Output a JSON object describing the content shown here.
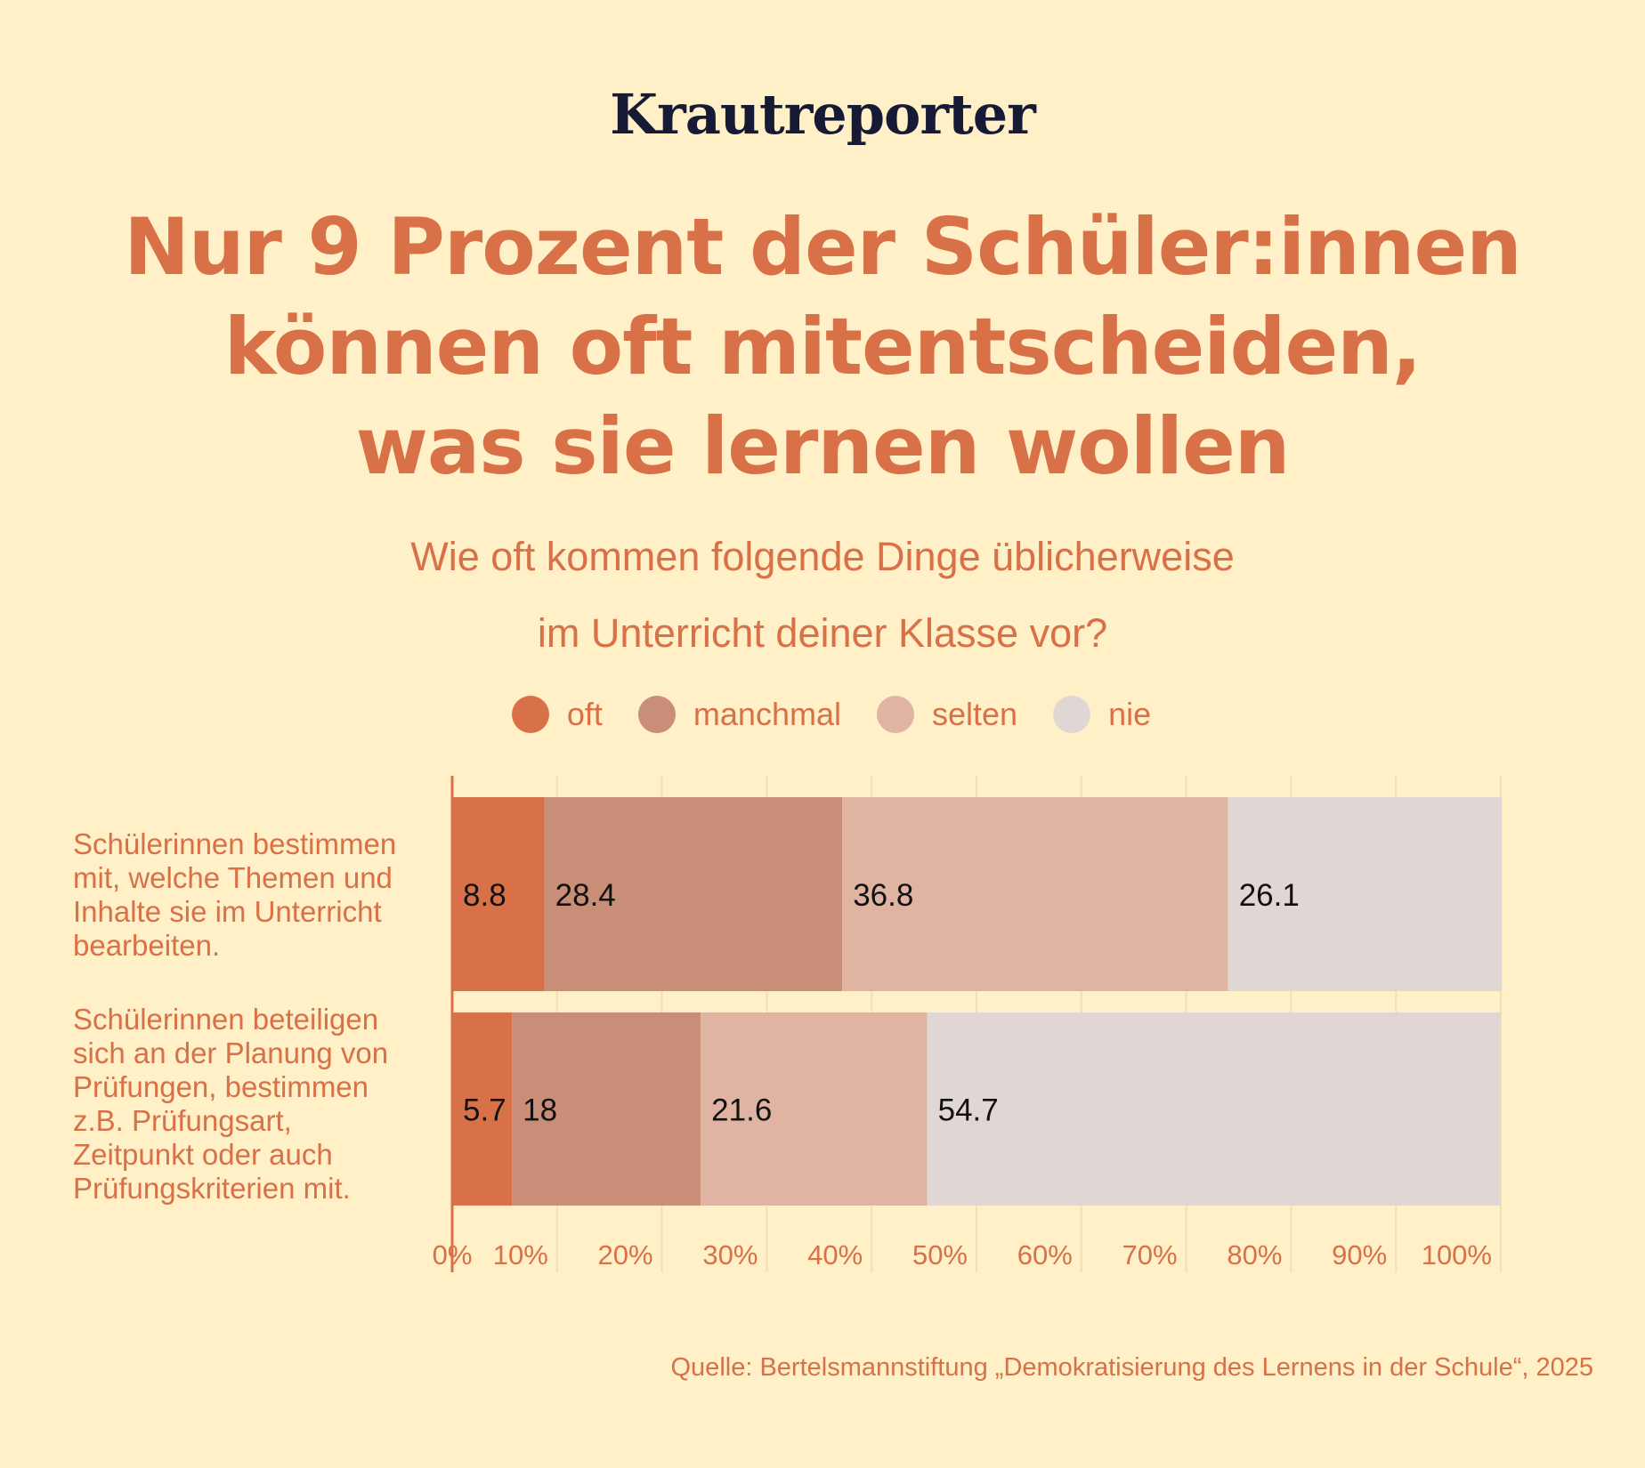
{
  "brand": "Krautreporter",
  "title_lines": [
    "Nur 9 Prozent der Schüler:innen",
    "können oft mitentscheiden,",
    "was sie lernen wollen"
  ],
  "subtitle_lines": [
    "Wie oft kommen folgende Dinge üblicherweise",
    "im Unterricht deiner Klasse vor?"
  ],
  "source": "Quelle: Bertelsmannstiftung „Demokratisierung des Lernens in der Schule“, 2025",
  "colors": {
    "background": "#fff0c7",
    "accent": "#d87148",
    "oft": "#d87148",
    "manchmal": "#c98e77",
    "selten": "#e0b4a3",
    "nie": "#e0d7d5"
  },
  "chart_data": {
    "type": "bar",
    "orientation": "horizontal",
    "stacked": true,
    "categories": [
      "Schülerinnen bestimmen mit, welche Themen und Inhalte sie im Unterricht bearbeiten.",
      "Schülerinnen beteiligen sich an der Planung von Prüfungen, bestimmen z.B. Prüfungsart, Zeitpunkt oder auch Prüfungskriterien mit."
    ],
    "category_lines": [
      [
        "Schülerinnen bestimmen",
        "mit, welche Themen und",
        "Inhalte sie im Unterricht",
        "bearbeiten."
      ],
      [
        "Schülerinnen beteiligen",
        "sich an der Planung von",
        "Prüfungen, bestimmen",
        "z.B. Prüfungsart,",
        "Zeitpunkt oder auch",
        "Prüfungskriterien mit."
      ]
    ],
    "series": [
      {
        "name": "oft",
        "values": [
          8.8,
          5.7
        ]
      },
      {
        "name": "manchmal",
        "values": [
          28.4,
          18
        ]
      },
      {
        "name": "selten",
        "values": [
          36.8,
          21.6
        ]
      },
      {
        "name": "nie",
        "values": [
          26.1,
          54.7
        ]
      }
    ],
    "xlim": [
      0,
      100
    ],
    "xticks": [
      "0%",
      "10%",
      "20%",
      "30%",
      "40%",
      "50%",
      "60%",
      "70%",
      "80%",
      "90%",
      "100%"
    ],
    "grid": true,
    "legend": "top-center",
    "value_labels": [
      "8.8",
      "28.4",
      "36.8",
      "26.1",
      "5.7",
      "18",
      "21.6",
      "54.7"
    ]
  }
}
